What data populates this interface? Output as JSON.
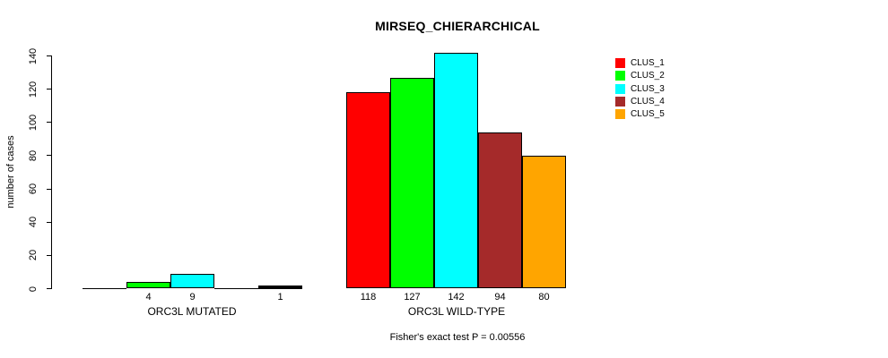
{
  "chart_data": {
    "type": "bar",
    "title": "MIRSEQ_CHIERARCHICAL",
    "ylabel": "number of cases",
    "annotation": "Fisher's exact test P = 0.00556",
    "ylim": [
      0,
      145
    ],
    "yticks": [
      0,
      20,
      40,
      60,
      80,
      100,
      120,
      140
    ],
    "grid": false,
    "legend_position": "right-outside-top",
    "categories": [
      "ORC3L MUTATED",
      "ORC3L WILD-TYPE"
    ],
    "series": [
      {
        "name": "CLUS_1",
        "color": "#FF0000",
        "values": [
          0,
          118
        ]
      },
      {
        "name": "CLUS_2",
        "color": "#00FF00",
        "values": [
          4,
          127
        ]
      },
      {
        "name": "CLUS_3",
        "color": "#00FFFF",
        "values": [
          9,
          142
        ]
      },
      {
        "name": "CLUS_4",
        "color": "#A52A2A",
        "values": [
          0,
          94
        ]
      },
      {
        "name": "CLUS_5",
        "color": "#FFA500",
        "values": [
          1,
          80
        ]
      }
    ],
    "bar_value_labels": [
      [
        "",
        "4",
        "9",
        "",
        "1"
      ],
      [
        "118",
        "127",
        "142",
        "94",
        "80"
      ]
    ],
    "axis_color": "#000000",
    "background_color": "#FFFFFF"
  }
}
